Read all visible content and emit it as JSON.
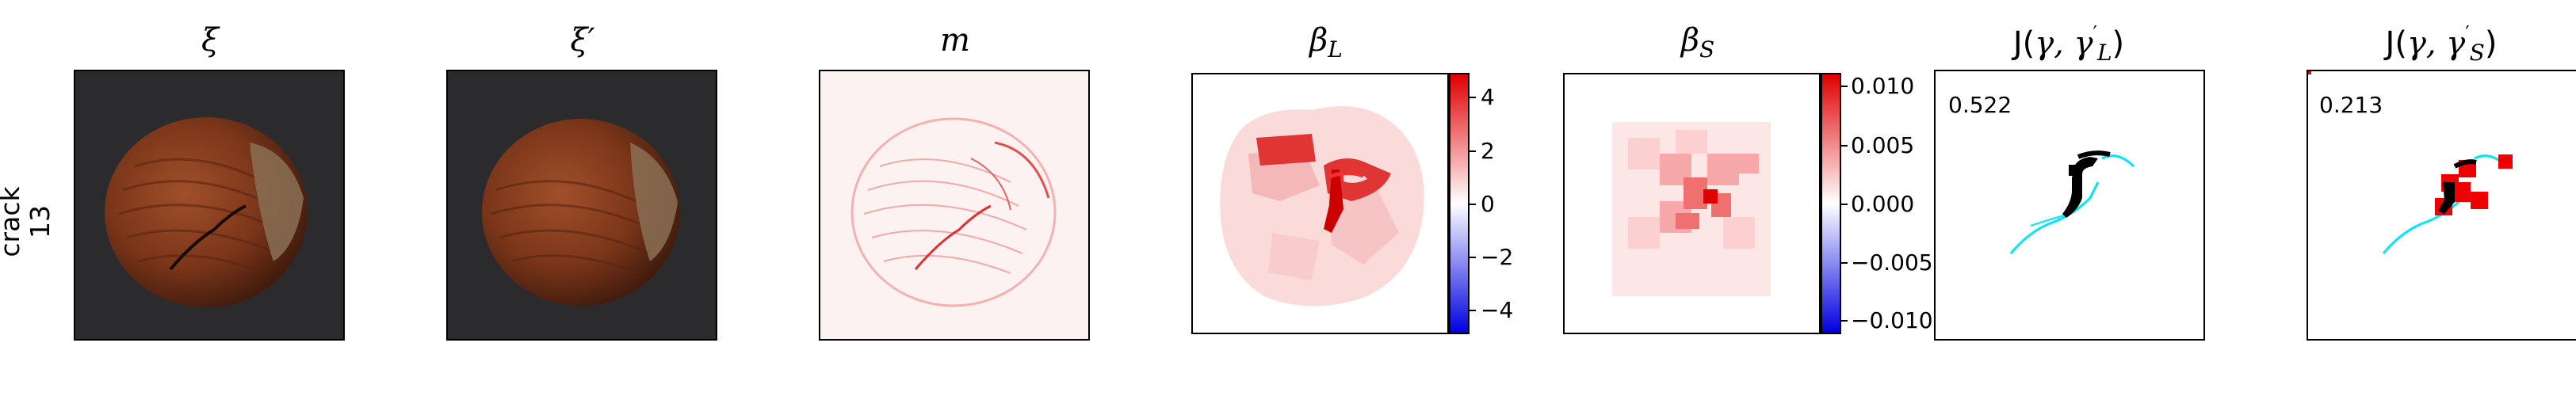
{
  "row_label": {
    "line1": "crack",
    "line2": "13"
  },
  "titles": {
    "xi": "ξ",
    "xi_prime": "ξ′",
    "m": "m",
    "beta_L": "β",
    "beta_L_sub": "L",
    "beta_S": "β",
    "beta_S_sub": "S",
    "jl_prefix": "J(",
    "jl_gamma": "γ, γ",
    "jl_sup": "′",
    "jl_sub": "L",
    "jl_suffix": ")",
    "js_prefix": "J(",
    "js_gamma": "γ, γ",
    "js_sup": "′",
    "js_sub": "S",
    "js_suffix": ")"
  },
  "scores": {
    "jl": "0.522",
    "js": "0.213"
  },
  "colorbar_L": {
    "ticks": [
      "4",
      "2",
      "0",
      "−2",
      "−4"
    ],
    "min": -5,
    "max": 5
  },
  "colorbar_S": {
    "ticks": [
      "0.010",
      "0.005",
      "0.000",
      "−0.005",
      "−0.010"
    ],
    "min": -0.0115,
    "max": 0.0115
  },
  "colors": {
    "red": "#ff0000",
    "cyan": "#00e5ff",
    "black": "#000000",
    "nut": "#7a3a1c",
    "bg_dark": "#2a2a2c"
  }
}
